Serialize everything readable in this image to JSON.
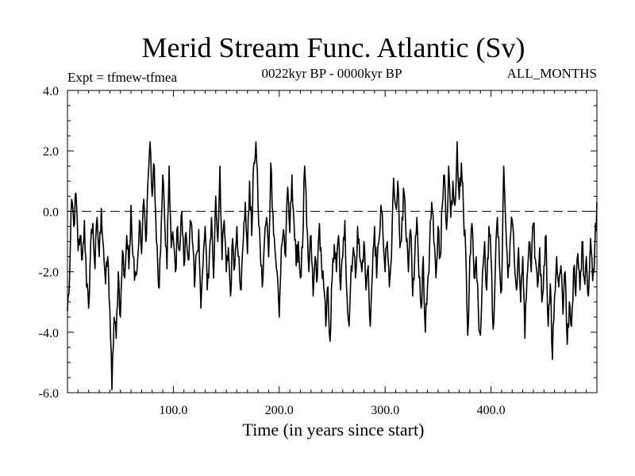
{
  "chart_data": {
    "type": "line",
    "title": "Merid Stream Func. Atlantic (Sv)",
    "subtitle": "0022kyr BP - 0000kyr BP",
    "left_label": "Expt = tfmew-tfmea",
    "right_label": "ALL_MONTHS",
    "xlabel": "Time (in years since start)",
    "ylabel": "",
    "xlim": [
      0,
      500
    ],
    "ylim": [
      -6.0,
      4.0
    ],
    "x_ticks": [
      100,
      200,
      300,
      400
    ],
    "x_tick_labels": [
      "100.0",
      "200.0",
      "300.0",
      "400.0"
    ],
    "y_ticks": [
      -6,
      -4,
      -2,
      0,
      2,
      4
    ],
    "y_tick_labels": [
      "-6.0",
      "-4.0",
      "-2.0",
      "0.0",
      "2.0",
      "4.0"
    ],
    "reference_line": 0.0,
    "series": [
      {
        "name": "Merid Stream Func. Atlantic",
        "anchors": [
          [
            0,
            -3.3
          ],
          [
            2,
            -2.2
          ],
          [
            4,
            0.4
          ],
          [
            6,
            -0.5
          ],
          [
            8,
            0.6
          ],
          [
            10,
            -1.3
          ],
          [
            12,
            -0.8
          ],
          [
            14,
            -1.6
          ],
          [
            16,
            -0.3
          ],
          [
            18,
            -2.5
          ],
          [
            20,
            -3.2
          ],
          [
            22,
            -1.0
          ],
          [
            24,
            -0.4
          ],
          [
            26,
            -1.9
          ],
          [
            28,
            -0.2
          ],
          [
            30,
            -1.5
          ],
          [
            32,
            0.1
          ],
          [
            34,
            -1.2
          ],
          [
            36,
            -2.4
          ],
          [
            38,
            -1.5
          ],
          [
            40,
            -3.2
          ],
          [
            42,
            -5.9
          ],
          [
            44,
            -3.5
          ],
          [
            46,
            -4.2
          ],
          [
            48,
            -2.0
          ],
          [
            50,
            -3.5
          ],
          [
            52,
            -1.3
          ],
          [
            54,
            -2.2
          ],
          [
            56,
            -0.8
          ],
          [
            58,
            -1.9
          ],
          [
            60,
            0.2
          ],
          [
            62,
            -1.5
          ],
          [
            64,
            -2.0
          ],
          [
            66,
            -1.8
          ],
          [
            68,
            -0.3
          ],
          [
            70,
            -1.4
          ],
          [
            72,
            0.4
          ],
          [
            74,
            -1.0
          ],
          [
            76,
            1.0
          ],
          [
            78,
            2.3
          ],
          [
            80,
            0.5
          ],
          [
            82,
            1.5
          ],
          [
            84,
            -1.0
          ],
          [
            86,
            -2.5
          ],
          [
            88,
            -1.3
          ],
          [
            90,
            1.2
          ],
          [
            92,
            -0.5
          ],
          [
            94,
            -1.9
          ],
          [
            96,
            1.5
          ],
          [
            98,
            -1.2
          ],
          [
            100,
            -0.9
          ],
          [
            102,
            -2.0
          ],
          [
            104,
            -0.5
          ],
          [
            106,
            -1.3
          ],
          [
            108,
            0.0
          ],
          [
            110,
            -1.8
          ],
          [
            112,
            -0.7
          ],
          [
            114,
            -1.6
          ],
          [
            116,
            -0.3
          ],
          [
            118,
            -1.0
          ],
          [
            120,
            -2.5
          ],
          [
            122,
            -1.4
          ],
          [
            124,
            -0.6
          ],
          [
            126,
            -3.2
          ],
          [
            128,
            -1.8
          ],
          [
            130,
            -0.5
          ],
          [
            132,
            -2.6
          ],
          [
            134,
            -1.5
          ],
          [
            136,
            -0.2
          ],
          [
            138,
            -2.2
          ],
          [
            140,
            0.5
          ],
          [
            142,
            -1.0
          ],
          [
            144,
            1.5
          ],
          [
            146,
            -1.6
          ],
          [
            148,
            -0.3
          ],
          [
            150,
            -2.0
          ],
          [
            152,
            -1.2
          ],
          [
            154,
            -2.8
          ],
          [
            156,
            -0.9
          ],
          [
            158,
            -1.8
          ],
          [
            160,
            -0.5
          ],
          [
            162,
            -1.5
          ],
          [
            164,
            -2.6
          ],
          [
            166,
            -1.0
          ],
          [
            168,
            0.3
          ],
          [
            170,
            -1.4
          ],
          [
            172,
            1.0
          ],
          [
            174,
            -0.8
          ],
          [
            176,
            1.6
          ],
          [
            178,
            2.3
          ],
          [
            180,
            0.2
          ],
          [
            182,
            -1.2
          ],
          [
            184,
            -2.5
          ],
          [
            186,
            -1.0
          ],
          [
            188,
            -0.2
          ],
          [
            190,
            -1.5
          ],
          [
            192,
            1.6
          ],
          [
            194,
            0.0
          ],
          [
            196,
            -1.3
          ],
          [
            198,
            -2.0
          ],
          [
            200,
            -3.5
          ],
          [
            202,
            -1.2
          ],
          [
            204,
            -0.6
          ],
          [
            206,
            -1.5
          ],
          [
            208,
            0.8
          ],
          [
            210,
            -0.7
          ],
          [
            212,
            1.2
          ],
          [
            214,
            -0.4
          ],
          [
            216,
            -1.8
          ],
          [
            218,
            -1.0
          ],
          [
            220,
            -2.2
          ],
          [
            222,
            -1.2
          ],
          [
            224,
            1.5
          ],
          [
            226,
            -0.5
          ],
          [
            228,
            -2.0
          ],
          [
            230,
            -0.8
          ],
          [
            232,
            -2.8
          ],
          [
            234,
            -1.5
          ],
          [
            236,
            -2.2
          ],
          [
            238,
            -0.4
          ],
          [
            240,
            -1.8
          ],
          [
            242,
            -2.5
          ],
          [
            244,
            -3.8
          ],
          [
            246,
            -2.5
          ],
          [
            248,
            -4.3
          ],
          [
            250,
            -2.2
          ],
          [
            252,
            -1.1
          ],
          [
            254,
            -2.0
          ],
          [
            256,
            -0.8
          ],
          [
            258,
            -2.6
          ],
          [
            260,
            -1.5
          ],
          [
            262,
            -0.3
          ],
          [
            264,
            -2.8
          ],
          [
            266,
            -3.8
          ],
          [
            268,
            -1.8
          ],
          [
            270,
            -1.2
          ],
          [
            272,
            -2.2
          ],
          [
            274,
            -0.5
          ],
          [
            276,
            -1.5
          ],
          [
            278,
            -2.0
          ],
          [
            280,
            -1.0
          ],
          [
            282,
            -2.6
          ],
          [
            284,
            -1.8
          ],
          [
            286,
            -3.8
          ],
          [
            288,
            -2.0
          ],
          [
            290,
            -0.5
          ],
          [
            292,
            -2.2
          ],
          [
            294,
            -1.0
          ],
          [
            296,
            0.2
          ],
          [
            298,
            -0.8
          ],
          [
            300,
            -2.0
          ],
          [
            302,
            -1.0
          ],
          [
            304,
            -2.5
          ],
          [
            306,
            -1.5
          ],
          [
            308,
            1.1
          ],
          [
            310,
            0.2
          ],
          [
            312,
            1.0
          ],
          [
            314,
            -1.2
          ],
          [
            316,
            -0.2
          ],
          [
            318,
            0.6
          ],
          [
            320,
            -1.0
          ],
          [
            322,
            -2.0
          ],
          [
            324,
            -0.6
          ],
          [
            326,
            -2.8
          ],
          [
            328,
            -1.5
          ],
          [
            330,
            -0.2
          ],
          [
            332,
            -2.2
          ],
          [
            334,
            -3.2
          ],
          [
            336,
            -1.5
          ],
          [
            338,
            -4.0
          ],
          [
            340,
            -2.5
          ],
          [
            342,
            -1.2
          ],
          [
            344,
            0.3
          ],
          [
            346,
            -1.0
          ],
          [
            348,
            -2.2
          ],
          [
            350,
            -0.5
          ],
          [
            352,
            -1.5
          ],
          [
            354,
            0.2
          ],
          [
            356,
            1.2
          ],
          [
            358,
            -0.6
          ],
          [
            360,
            1.5
          ],
          [
            362,
            -0.2
          ],
          [
            364,
            1.0
          ],
          [
            366,
            0.2
          ],
          [
            368,
            2.3
          ],
          [
            370,
            0.4
          ],
          [
            372,
            1.6
          ],
          [
            374,
            0.0
          ],
          [
            376,
            -1.2
          ],
          [
            378,
            -4.1
          ],
          [
            380,
            -1.5
          ],
          [
            382,
            -0.4
          ],
          [
            384,
            -2.2
          ],
          [
            386,
            -1.5
          ],
          [
            388,
            -3.2
          ],
          [
            390,
            -4.1
          ],
          [
            392,
            -2.0
          ],
          [
            394,
            -1.0
          ],
          [
            396,
            -2.6
          ],
          [
            398,
            -0.5
          ],
          [
            400,
            -1.5
          ],
          [
            402,
            -3.9
          ],
          [
            404,
            -2.0
          ],
          [
            406,
            -0.2
          ],
          [
            408,
            -1.8
          ],
          [
            410,
            -2.6
          ],
          [
            412,
            1.5
          ],
          [
            414,
            -0.5
          ],
          [
            416,
            -2.2
          ],
          [
            418,
            -1.0
          ],
          [
            420,
            -0.3
          ],
          [
            422,
            -1.6
          ],
          [
            424,
            -2.6
          ],
          [
            426,
            -1.2
          ],
          [
            428,
            -3.0
          ],
          [
            430,
            -1.5
          ],
          [
            432,
            -4.2
          ],
          [
            434,
            -2.2
          ],
          [
            436,
            -1.0
          ],
          [
            438,
            -2.0
          ],
          [
            440,
            -0.4
          ],
          [
            442,
            -1.6
          ],
          [
            444,
            -2.5
          ],
          [
            446,
            -1.2
          ],
          [
            448,
            -3.0
          ],
          [
            450,
            -1.8
          ],
          [
            452,
            -0.8
          ],
          [
            454,
            -3.8
          ],
          [
            456,
            -2.4
          ],
          [
            458,
            -4.9
          ],
          [
            460,
            -2.8
          ],
          [
            462,
            -1.5
          ],
          [
            464,
            -2.5
          ],
          [
            466,
            -1.8
          ],
          [
            468,
            -3.4
          ],
          [
            470,
            -2.0
          ],
          [
            472,
            -4.4
          ],
          [
            474,
            -3.0
          ],
          [
            476,
            -3.8
          ],
          [
            478,
            -1.9
          ],
          [
            480,
            -2.8
          ],
          [
            482,
            -1.4
          ],
          [
            484,
            -2.6
          ],
          [
            486,
            -1.0
          ],
          [
            488,
            -2.2
          ],
          [
            490,
            -1.5
          ],
          [
            492,
            -2.8
          ],
          [
            494,
            -0.9
          ],
          [
            496,
            -2.3
          ],
          [
            498,
            -1.2
          ],
          [
            500,
            0.3
          ]
        ]
      }
    ]
  },
  "colors": {
    "line": "#000000",
    "background": "#ffffff",
    "axis": "#000000"
  }
}
